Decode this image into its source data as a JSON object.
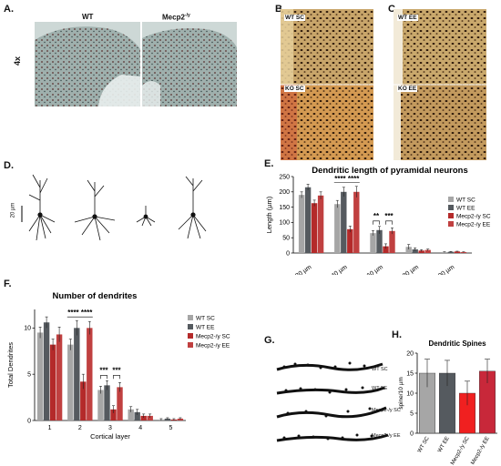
{
  "panels": {
    "A": {
      "label": "A.",
      "col1": "WT",
      "col2": "Mecp2",
      "col2_sup": "-/y",
      "magnification": "4x"
    },
    "B": {
      "label": "B.",
      "top": "WT SC",
      "bottom": "KO SC"
    },
    "C": {
      "label": "C.",
      "top": "WT EE",
      "bottom": "KO EE"
    },
    "D": {
      "label": "D.",
      "scale": "20 µm"
    },
    "E": {
      "label": "E."
    },
    "F": {
      "label": "F."
    },
    "G": {
      "label": "G.",
      "rows": [
        "WT SC",
        "WT EE",
        "Mecp2-/y SC",
        "Mecp2-/y EE"
      ]
    },
    "H": {
      "label": "H."
    }
  },
  "legend_labels": [
    "WT SC",
    "WT EE",
    "Mecp2-/y SC",
    "Mecp2-/y EE"
  ],
  "colors": {
    "wt_sc": "#a6a6a6",
    "wt_ee": "#555a5f",
    "ko_sc": "#b42a2a",
    "ko_ee": "#c04040",
    "h_ko_sc": "#f02020",
    "h_ko_ee": "#c8283a"
  },
  "chart_data": [
    {
      "type": "bar",
      "id": "E",
      "title": "Dendritic length of pyramidal neurons",
      "ylabel": "Length (µm)",
      "xlabel": "",
      "ylim": [
        0,
        250
      ],
      "yticks": [
        0,
        50,
        100,
        150,
        200,
        250
      ],
      "categories": [
        "0-20 µm",
        "20-40 µm",
        "40-60 µm",
        "60-80 µm",
        "80-100 µm"
      ],
      "series": [
        {
          "name": "WT SC",
          "values": [
            190,
            160,
            65,
            20,
            3
          ],
          "err": [
            10,
            12,
            8,
            8,
            1
          ]
        },
        {
          "name": "WT EE",
          "values": [
            215,
            200,
            75,
            12,
            4
          ],
          "err": [
            10,
            15,
            12,
            5,
            1
          ]
        },
        {
          "name": "Mecp2-/y SC",
          "values": [
            163,
            78,
            22,
            8,
            5
          ],
          "err": [
            10,
            10,
            8,
            3,
            1
          ]
        },
        {
          "name": "Mecp2-/y EE",
          "values": [
            188,
            200,
            72,
            10,
            3
          ],
          "err": [
            12,
            18,
            10,
            3,
            1
          ]
        }
      ],
      "significance": [
        {
          "category": 1,
          "text": "**** ****"
        },
        {
          "category": 2,
          "left": "**",
          "right": "***"
        }
      ],
      "legend": "right"
    },
    {
      "type": "bar",
      "id": "F",
      "title": "Number of dendrites",
      "ylabel": "Total Dendrites",
      "xlabel": "Cortical layer",
      "ylim": [
        0,
        12
      ],
      "yticks": [
        0,
        5,
        10
      ],
      "categories": [
        "1",
        "2",
        "3",
        "4",
        "5"
      ],
      "series": [
        {
          "name": "WT SC",
          "values": [
            9.5,
            8.2,
            3.3,
            1.2,
            0.1
          ],
          "err": [
            0.6,
            0.6,
            0.4,
            0.3,
            0.1
          ]
        },
        {
          "name": "WT EE",
          "values": [
            10.6,
            10.0,
            3.8,
            0.9,
            0.2
          ],
          "err": [
            0.6,
            0.8,
            0.5,
            0.3,
            0.1
          ]
        },
        {
          "name": "Mecp2-/y SC",
          "values": [
            8.2,
            4.2,
            1.2,
            0.5,
            0.1
          ],
          "err": [
            0.6,
            0.8,
            0.4,
            0.2,
            0.1
          ]
        },
        {
          "name": "Mecp2-/y EE",
          "values": [
            9.3,
            10.0,
            3.6,
            0.5,
            0.2
          ],
          "err": [
            0.8,
            0.7,
            0.5,
            0.2,
            0.1
          ]
        }
      ],
      "significance": [
        {
          "category": 1,
          "text": "**** ****"
        },
        {
          "category": 2,
          "left": "***",
          "right": "***"
        }
      ],
      "legend": "right"
    },
    {
      "type": "bar",
      "id": "H",
      "title": "Dendritic Spines",
      "ylabel": "spine/10 µm",
      "xlabel": "",
      "ylim": [
        0,
        20
      ],
      "yticks": [
        0,
        5,
        10,
        15,
        20
      ],
      "categories": [
        "WT SC",
        "WT EE",
        "Mecp2-/y SC",
        "Mecp2-/y EE"
      ],
      "values": [
        15,
        15,
        10,
        15.5
      ],
      "err": [
        3.5,
        3.2,
        3,
        3
      ]
    }
  ]
}
